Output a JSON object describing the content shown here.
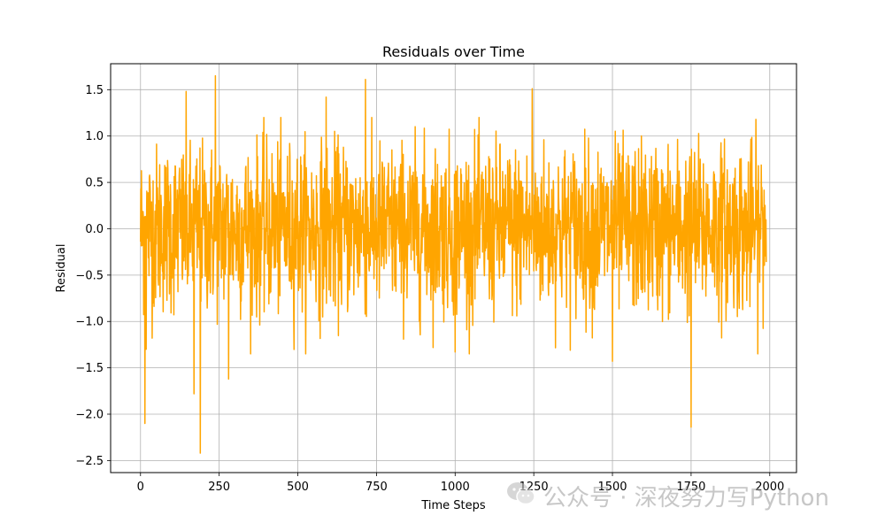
{
  "chart_data": {
    "type": "line",
    "title": "Residuals over Time",
    "xlabel": "Time Steps",
    "ylabel": "Residual",
    "xlim": [
      -95,
      2085
    ],
    "ylim": [
      -2.63,
      1.78
    ],
    "xticks": [
      0,
      250,
      500,
      750,
      1000,
      1250,
      1500,
      1750,
      2000
    ],
    "xtick_labels": [
      "0",
      "250",
      "500",
      "750",
      "1000",
      "1250",
      "1500",
      "1750",
      "2000"
    ],
    "yticks": [
      -2.5,
      -2.0,
      -1.5,
      -1.0,
      -0.5,
      0.0,
      0.5,
      1.0,
      1.5
    ],
    "ytick_labels": [
      "−2.5",
      "−2.0",
      "−1.5",
      "−1.0",
      "−0.5",
      "0.0",
      "0.5",
      "1.0",
      "1.5"
    ],
    "grid": true,
    "line_color": "#ffa500",
    "n_points": 1990,
    "noise_sd": 0.45,
    "notable_points": [
      {
        "x": 14,
        "y": -2.1
      },
      {
        "x": 18,
        "y": -1.3
      },
      {
        "x": 145,
        "y": 1.48
      },
      {
        "x": 170,
        "y": -1.78
      },
      {
        "x": 190,
        "y": -2.42
      },
      {
        "x": 238,
        "y": 1.65
      },
      {
        "x": 280,
        "y": -1.62
      },
      {
        "x": 590,
        "y": 1.42
      },
      {
        "x": 715,
        "y": 1.61
      },
      {
        "x": 1000,
        "y": -1.33
      },
      {
        "x": 1245,
        "y": 1.51
      },
      {
        "x": 1500,
        "y": -1.43
      },
      {
        "x": 1750,
        "y": -2.14
      }
    ]
  },
  "watermark": {
    "text": "公众号 · 深夜努力写Python",
    "icon": "wechat-icon"
  }
}
